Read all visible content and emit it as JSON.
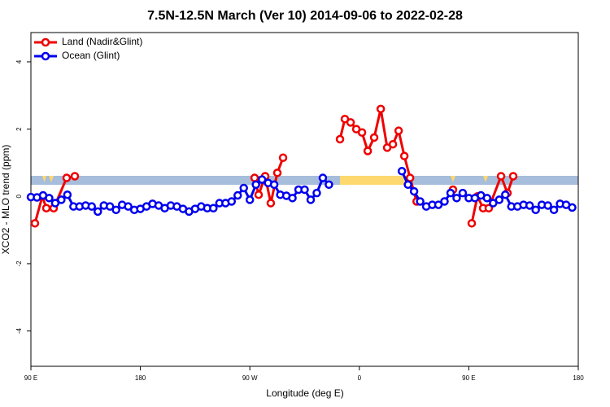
{
  "chart_data": {
    "type": "line",
    "title": "7.5N-12.5N March (Ver 10)   2014-09-06 to 2022-02-28",
    "x_label": "Longitude (deg E)",
    "y_label": "XCO2 - MLO trend (ppm)",
    "xlim": [
      90,
      540
    ],
    "ylim": [
      -5.05,
      4.87
    ],
    "xticks": [
      {
        "value": 90,
        "label": "90 E"
      },
      180,
      {
        "value": 270,
        "label": "90 W"
      },
      {
        "value": 360,
        "label": "0"
      },
      {
        "value": 450,
        "label": "90 E"
      },
      {
        "value": 540,
        "label": "180"
      }
    ],
    "yticks": [
      -4,
      -2,
      0,
      2,
      4
    ],
    "legend": "top-left",
    "series": [
      {
        "name": "Land (Nadir&Glint)",
        "color": "#ee0000",
        "x": [
          93.3,
          99.4,
          102.7,
          108.7,
          119.4,
          126.1,
          null,
          273.9,
          277.2,
          282.6,
          287.2,
          292.6,
          297.3,
          null,
          344.1,
          348.1,
          352.8,
          357.5,
          362.2,
          366.9,
          372.2,
          377.6,
          382.9,
          387.6,
          392.3,
          397,
          401.7,
          407.1,
          null,
          437,
          null,
          452.4,
          457.1,
          461.8,
          466.4,
          476.5,
          481.8,
          486.5
        ],
        "values": [
          -0.8,
          0,
          -0.35,
          -0.35,
          0.55,
          0.6,
          null,
          0.55,
          0.05,
          0.6,
          -0.2,
          0.7,
          1.15,
          null,
          1.7,
          2.3,
          2.2,
          2.0,
          1.9,
          1.35,
          1.75,
          2.6,
          1.45,
          1.55,
          1.95,
          1.2,
          0.55,
          -0.15,
          null,
          0.2,
          null,
          -0.8,
          0,
          -0.35,
          -0.35,
          0.6,
          0.1,
          0.6
        ]
      },
      {
        "name": "Ocean (Glint)",
        "color": "#0000ee",
        "x": [
          90,
          95,
          100,
          105,
          110,
          115,
          120,
          125,
          130,
          135,
          140,
          145,
          150,
          155,
          160,
          165,
          170,
          175,
          180,
          185,
          190,
          195,
          200,
          205,
          210,
          215,
          220,
          225,
          230,
          235,
          240,
          245,
          250,
          255,
          260,
          265,
          270,
          275,
          280,
          285,
          290,
          295,
          300,
          305,
          310,
          315,
          320,
          325,
          330,
          335,
          null,
          null,
          null,
          null,
          null,
          null,
          null,
          null,
          null,
          null,
          null,
          395,
          400,
          405,
          410,
          415,
          420,
          425,
          430,
          435,
          440,
          445,
          450,
          455,
          460,
          465,
          470,
          475,
          480,
          485,
          490,
          495,
          500,
          505,
          510,
          515,
          520,
          525,
          530,
          535
        ],
        "values": [
          -0.02,
          -0.03,
          0.03,
          -0.05,
          -0.2,
          -0.1,
          0.05,
          -0.3,
          -0.3,
          -0.27,
          -0.3,
          -0.45,
          -0.27,
          -0.3,
          -0.4,
          -0.25,
          -0.3,
          -0.4,
          -0.37,
          -0.3,
          -0.22,
          -0.27,
          -0.35,
          -0.27,
          -0.3,
          -0.37,
          -0.45,
          -0.37,
          -0.3,
          -0.35,
          -0.35,
          -0.2,
          -0.2,
          -0.15,
          0.03,
          0.25,
          -0.1,
          0.35,
          0.5,
          0.4,
          0.35,
          0.05,
          0.02,
          -0.05,
          0.2,
          0.2,
          -0.1,
          0.1,
          0.55,
          0.35,
          null,
          null,
          null,
          null,
          null,
          null,
          null,
          null,
          null,
          null,
          null,
          0.75,
          0.35,
          0.15,
          -0.15,
          -0.3,
          -0.25,
          -0.25,
          -0.15,
          0.1,
          -0.05,
          0.1,
          -0.05,
          -0.05,
          0.03,
          -0.05,
          -0.2,
          -0.1,
          0.05,
          -0.3,
          -0.3,
          -0.25,
          -0.27,
          -0.4,
          -0.25,
          -0.27,
          -0.4,
          -0.22,
          -0.25,
          -0.33
        ]
      }
    ]
  }
}
